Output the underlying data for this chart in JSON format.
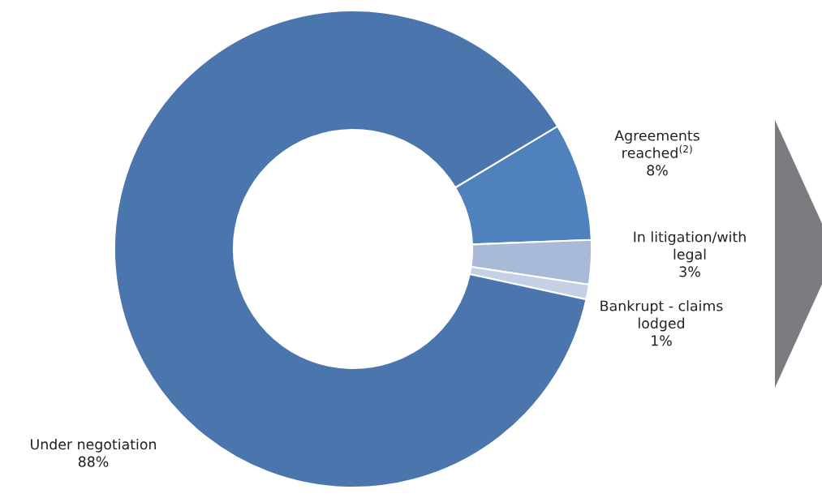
{
  "chart_data": {
    "type": "donut",
    "categories": [
      "Agreements reached$^{(2)}$",
      "In litigation/with legal",
      "Bankrupt - claims lodged",
      "Under negotiation"
    ],
    "values": [
      8,
      3,
      1,
      88
    ],
    "value_labels": [
      "8%",
      "3%",
      "1%",
      "88%"
    ],
    "colors": [
      "#4f81bd",
      "#a9b9d8",
      "#c5d0e6",
      "#4a76ad"
    ]
  }
}
